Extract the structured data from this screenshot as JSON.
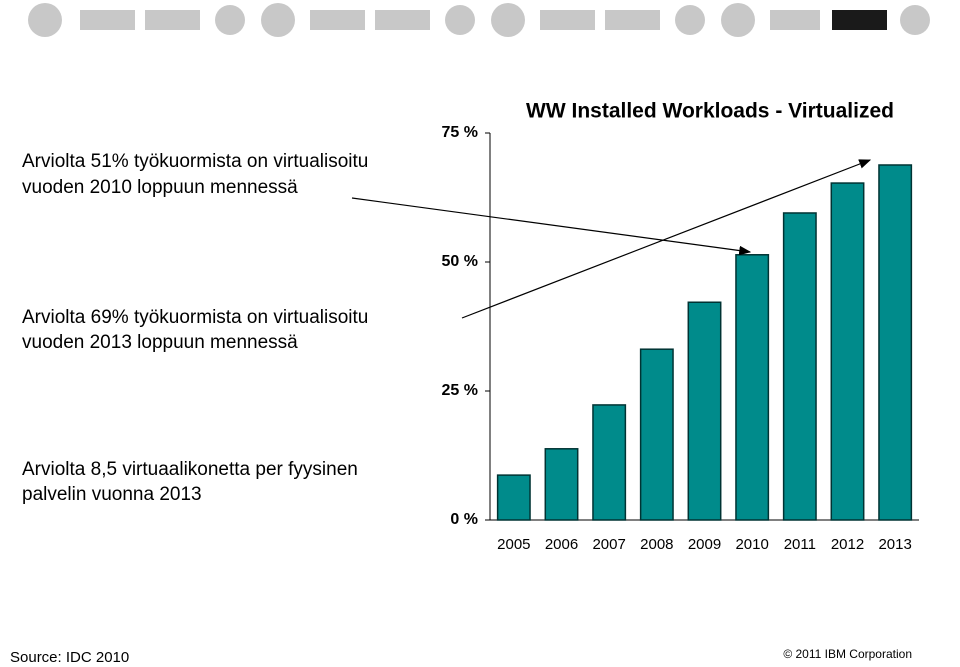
{
  "chart_data": {
    "type": "bar",
    "title": "WW Installed Workloads - Virtualized",
    "categories": [
      "2005",
      "2006",
      "2007",
      "2008",
      "2009",
      "2010",
      "2011",
      "2012",
      "2013"
    ],
    "values": [
      8.7,
      13.8,
      22.3,
      33.1,
      42.2,
      51.4,
      59.5,
      65.3,
      68.8
    ],
    "color": "#008b8b",
    "ylim": [
      0,
      75
    ],
    "yticks": [
      {
        "value": 0,
        "label": "0 %"
      },
      {
        "value": 25,
        "label": "25 %"
      },
      {
        "value": 50,
        "label": "50 %"
      },
      {
        "value": 75,
        "label": "75 %"
      }
    ],
    "annotations": [
      [
        "Arviolta 51% työkuormista on virtualisoitu",
        "vuoden 2010 loppuun mennessä"
      ],
      [
        "Arviolta 69% työkuormista on virtualisoitu",
        "vuoden 2013 loppuun mennessä"
      ],
      [
        "Arviolta 8,5 virtuaalikonetta per fyysinen",
        "palvelin vuonna 2013"
      ]
    ],
    "source": "Source: IDC 2010",
    "copyright": "© 2011 IBM Corporation"
  }
}
